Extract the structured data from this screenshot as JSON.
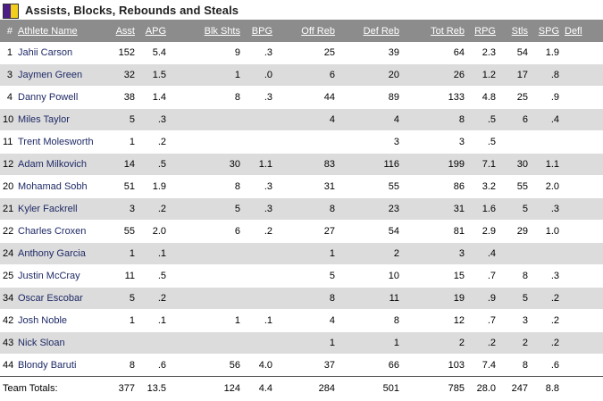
{
  "title": "Assists, Blocks, Rebounds and Steals",
  "colors": {
    "swatch_left": "#4b1f86",
    "swatch_right": "#f2cf1d",
    "header_bg": "#8c8c8c"
  },
  "columns": [
    "#",
    "Athlete Name",
    "Asst",
    "APG",
    "Blk Shts",
    "BPG",
    "Off Reb",
    "Def Reb",
    "Tot Reb",
    "RPG",
    "Stls",
    "SPG",
    "Defl"
  ],
  "rows": [
    [
      "1",
      "Jahii Carson",
      "152",
      "5.4",
      "9",
      ".3",
      "25",
      "39",
      "64",
      "2.3",
      "54",
      "1.9",
      ""
    ],
    [
      "3",
      "Jaymen Green",
      "32",
      "1.5",
      "1",
      ".0",
      "6",
      "20",
      "26",
      "1.2",
      "17",
      ".8",
      ""
    ],
    [
      "4",
      "Danny Powell",
      "38",
      "1.4",
      "8",
      ".3",
      "44",
      "89",
      "133",
      "4.8",
      "25",
      ".9",
      ""
    ],
    [
      "10",
      "Miles Taylor",
      "5",
      ".3",
      "",
      "",
      "4",
      "4",
      "8",
      ".5",
      "6",
      ".4",
      ""
    ],
    [
      "11",
      "Trent Molesworth",
      "1",
      ".2",
      "",
      "",
      "",
      "3",
      "3",
      ".5",
      "",
      "",
      ""
    ],
    [
      "12",
      "Adam Milkovich",
      "14",
      ".5",
      "30",
      "1.1",
      "83",
      "116",
      "199",
      "7.1",
      "30",
      "1.1",
      ""
    ],
    [
      "20",
      "Mohamad Sobh",
      "51",
      "1.9",
      "8",
      ".3",
      "31",
      "55",
      "86",
      "3.2",
      "55",
      "2.0",
      ""
    ],
    [
      "21",
      "Kyler Fackrell",
      "3",
      ".2",
      "5",
      ".3",
      "8",
      "23",
      "31",
      "1.6",
      "5",
      ".3",
      ""
    ],
    [
      "22",
      "Charles Croxen",
      "55",
      "2.0",
      "6",
      ".2",
      "27",
      "54",
      "81",
      "2.9",
      "29",
      "1.0",
      ""
    ],
    [
      "24",
      "Anthony Garcia",
      "1",
      ".1",
      "",
      "",
      "1",
      "2",
      "3",
      ".4",
      "",
      "",
      ""
    ],
    [
      "25",
      "Justin McCray",
      "11",
      ".5",
      "",
      "",
      "5",
      "10",
      "15",
      ".7",
      "8",
      ".3",
      ""
    ],
    [
      "34",
      "Oscar Escobar",
      "5",
      ".2",
      "",
      "",
      "8",
      "11",
      "19",
      ".9",
      "5",
      ".2",
      ""
    ],
    [
      "42",
      "Josh Noble",
      "1",
      ".1",
      "1",
      ".1",
      "4",
      "8",
      "12",
      ".7",
      "3",
      ".2",
      ""
    ],
    [
      "43",
      "Nick Sloan",
      "",
      "",
      "",
      "",
      "1",
      "1",
      "2",
      ".2",
      "2",
      ".2",
      ""
    ],
    [
      "44",
      "Blondy Baruti",
      "8",
      ".6",
      "56",
      "4.0",
      "37",
      "66",
      "103",
      "7.4",
      "8",
      ".6",
      ""
    ]
  ],
  "totals": [
    "Team Totals:",
    "377",
    "13.5",
    "124",
    "4.4",
    "284",
    "501",
    "785",
    "28.0",
    "247",
    "8.8",
    ""
  ]
}
